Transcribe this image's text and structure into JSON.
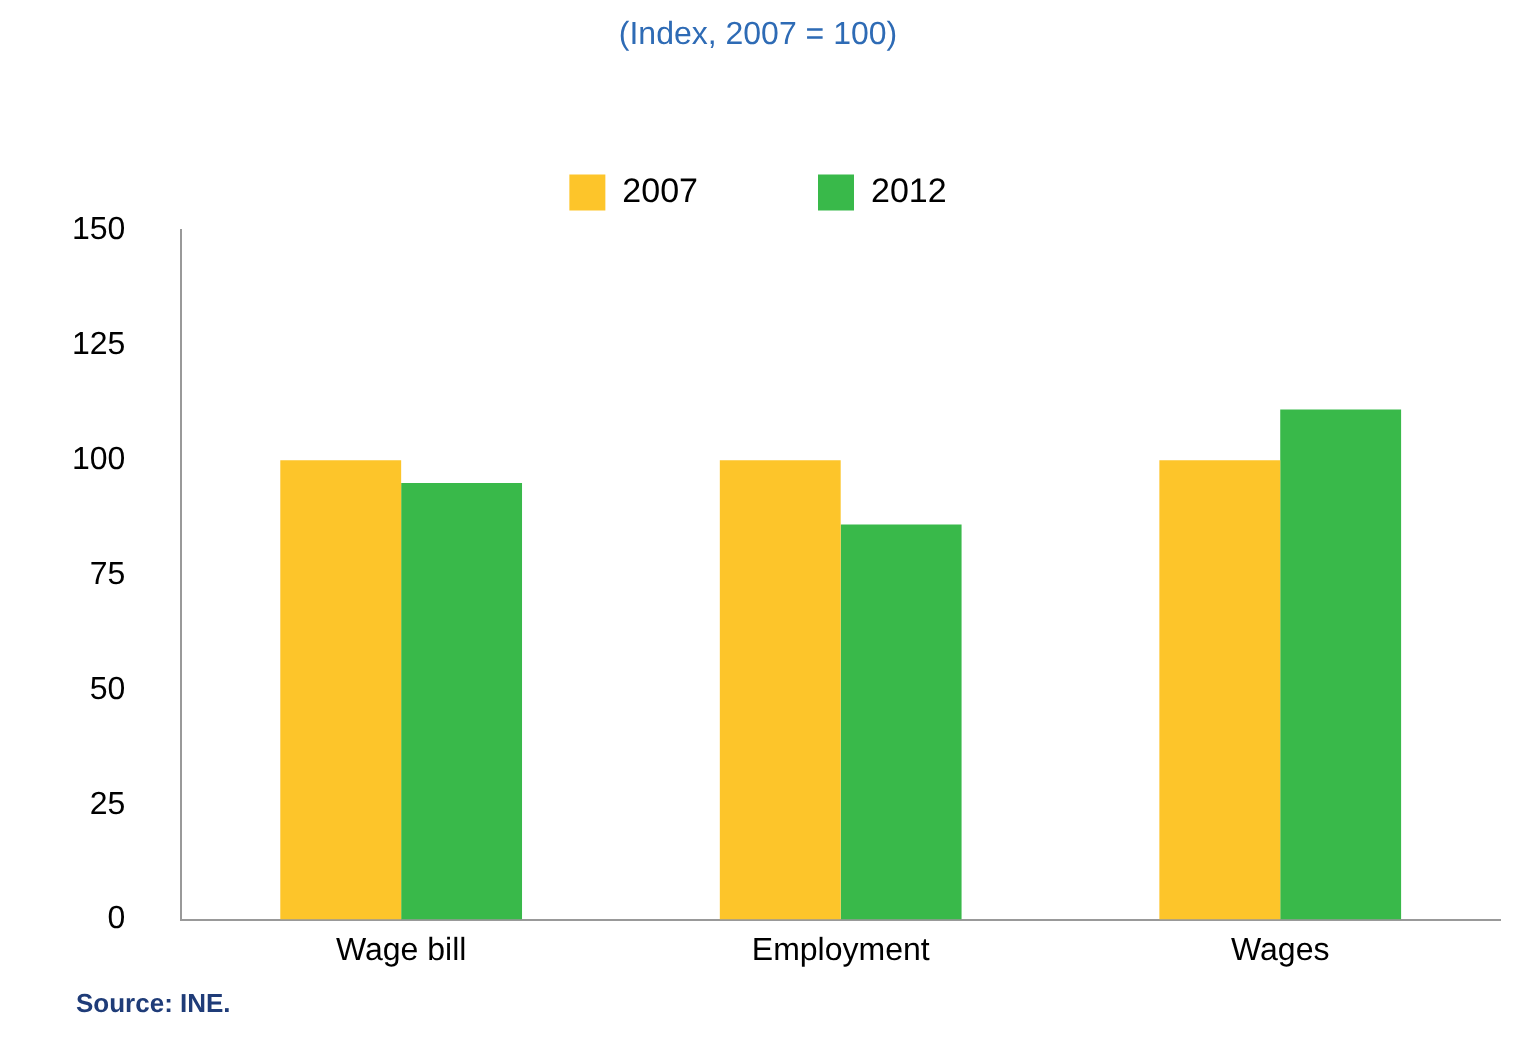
{
  "chart_data": {
    "type": "bar",
    "subtitle": "(Index, 2007 = 100)",
    "categories": [
      "Wage bill",
      "Employment",
      "Wages"
    ],
    "series": [
      {
        "name": "2007",
        "color": "#fdc52a",
        "values": [
          100,
          100,
          100
        ]
      },
      {
        "name": "2012",
        "color": "#39b94a",
        "values": [
          95,
          86,
          111
        ]
      }
    ],
    "ylim": [
      0,
      150
    ],
    "yticks": [
      0,
      25,
      50,
      75,
      100,
      125,
      150
    ],
    "grid": false,
    "legend": "top",
    "annotations": [
      "Source: INE."
    ]
  }
}
